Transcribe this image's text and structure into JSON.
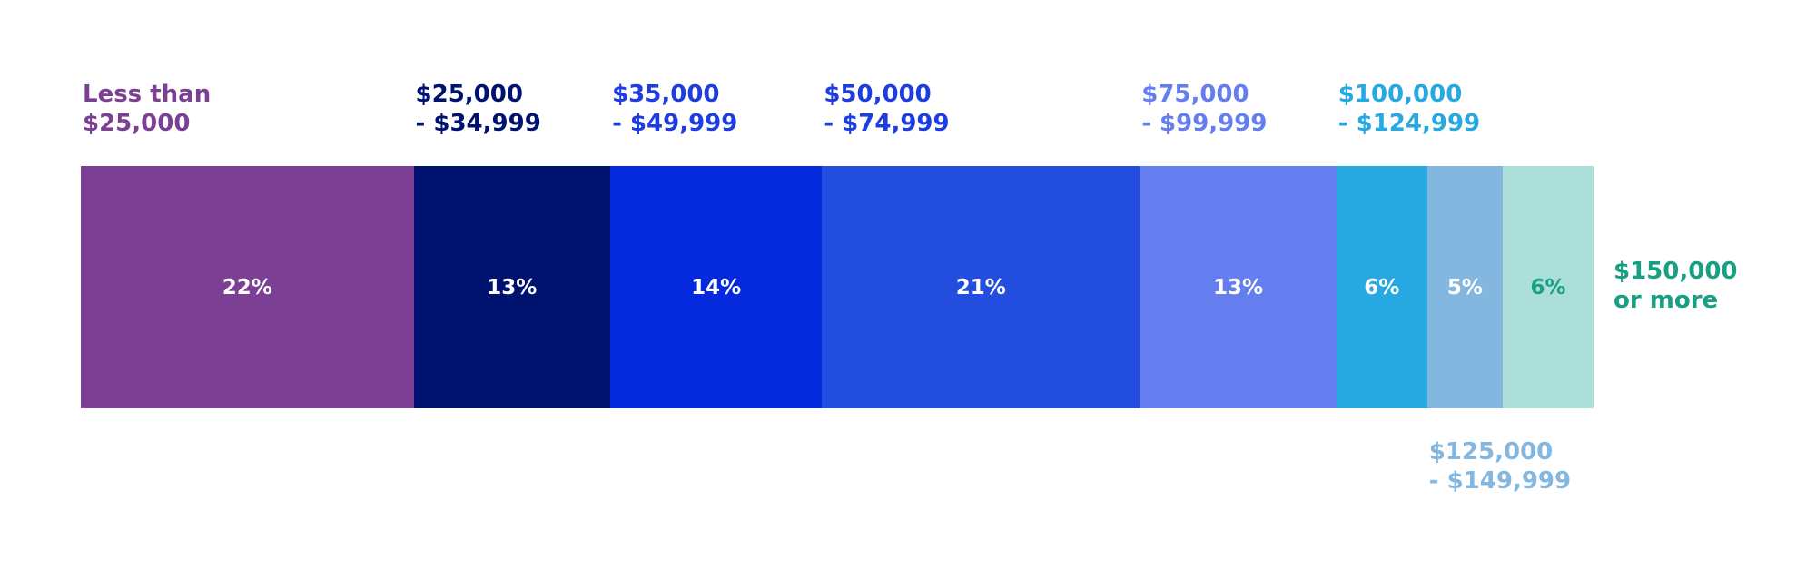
{
  "chart_data": {
    "type": "bar",
    "orientation": "horizontal-stacked-100",
    "categories": [
      "Less than $25,000",
      "$25,000 - $34,999",
      "$35,000 - $49,999",
      "$50,000 - $74,999",
      "$75,000 - $99,999",
      "$100,000 - $124,999",
      "$125,000 - $149,999",
      "$150,000 or more"
    ],
    "values": [
      22,
      13,
      14,
      21,
      13,
      6,
      5,
      6
    ],
    "unit": "%",
    "segments": [
      {
        "line1": "Less than",
        "line2": "$25,000",
        "value_label": "22%",
        "color": "#7b4094",
        "text_color": "#ffffff",
        "label_pos": "top"
      },
      {
        "line1": "$25,000",
        "line2": "- $34,999",
        "value_label": "13%",
        "color": "#001270",
        "text_color": "#ffffff",
        "label_pos": "top"
      },
      {
        "line1": "$35,000",
        "line2": "- $49,999",
        "value_label": "14%",
        "color": "#052ade",
        "text_color": "#ffffff",
        "label_pos": "top"
      },
      {
        "line1": "$50,000",
        "line2": "- $74,999",
        "value_label": "21%",
        "color": "#234ddf",
        "text_color": "#ffffff",
        "label_pos": "top"
      },
      {
        "line1": "$75,000",
        "line2": "- $99,999",
        "value_label": "13%",
        "color": "#647def",
        "text_color": "#ffffff",
        "label_pos": "top"
      },
      {
        "line1": "$100,000",
        "line2": "- $124,999",
        "value_label": "6%",
        "color": "#26a8e0",
        "text_color": "#ffffff",
        "label_pos": "top"
      },
      {
        "line1": "$125,000",
        "line2": "- $149,999",
        "value_label": "5%",
        "color": "#84b7e0",
        "text_color": "#ffffff",
        "label_pos": "bottom"
      },
      {
        "line1": "$150,000",
        "line2": "or more",
        "value_label": "6%",
        "color": "#acdeda",
        "text_color": "#17a083",
        "label_pos": "right"
      }
    ],
    "label_colors": [
      "#7b4094",
      "#001270",
      "#1e3de0",
      "#1e3de0",
      "#647def",
      "#26a8e0",
      "#84b7e0",
      "#17a083"
    ],
    "legend": "none",
    "grid": false
  }
}
